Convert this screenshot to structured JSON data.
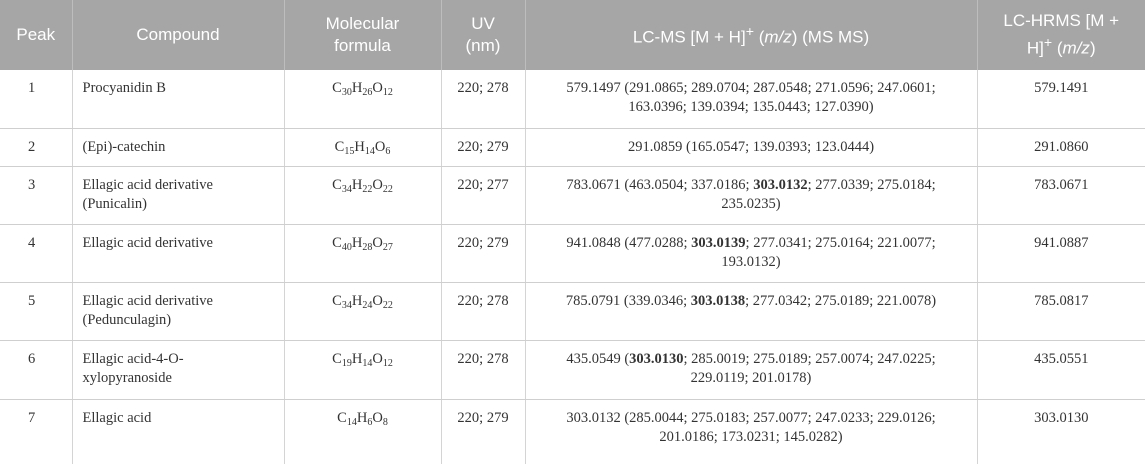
{
  "header": {
    "peak": "Peak",
    "compound": "Compound",
    "formula_l1": "Molecular",
    "formula_l2": "formula",
    "uv_l1": "UV",
    "uv_l2": "(nm)",
    "lcms_a": "LC-MS [M + H]",
    "lcms_sup": "+",
    "lcms_b": " (",
    "lcms_mz": "m/z",
    "lcms_c": ") (MS MS)",
    "hrms_l1": "LC-HRMS [M +",
    "hrms_l2a": "H]",
    "hrms_sup": "+",
    "hrms_l2b": " (",
    "hrms_mz": "m/z",
    "hrms_l2c": ")"
  },
  "rows": [
    {
      "peak": "1",
      "compound": "Procyanidin B",
      "formula": {
        "C": "C",
        "cn": "30",
        "H": "H",
        "hn": "26",
        "O": "O",
        "on": "12"
      },
      "uv": "220; 278",
      "lcms": {
        "a": "579.1497 (291.0865; 289.0704; 287.0548; 271.0596; 247.0601;",
        "b": "163.0396; 139.0394; 135.0443; 127.0390)"
      },
      "hrms": "579.1491"
    },
    {
      "peak": "2",
      "compound": "(Epi)-catechin",
      "formula": {
        "C": "C",
        "cn": "15",
        "H": "H",
        "hn": "14",
        "O": "O",
        "on": "6"
      },
      "uv": "220; 279",
      "lcms": {
        "a": "291.0859 (165.0547; 139.0393; 123.0444)"
      },
      "hrms": "291.0860"
    },
    {
      "peak": "3",
      "compound_l1": "Ellagic acid derivative",
      "compound_l2": "(Punicalin)",
      "formula": {
        "C": "C",
        "cn": "34",
        "H": "H",
        "hn": "22",
        "O": "O",
        "on": "22"
      },
      "uv": "220; 277",
      "lcms": {
        "a": "783.0671 (463.0504; 337.0186; ",
        "bold": "303.0132",
        "c": "; 277.0339; 275.0184;",
        "d": "235.0235)"
      },
      "hrms": "783.0671"
    },
    {
      "peak": "4",
      "compound": "Ellagic acid derivative",
      "formula": {
        "C": "C",
        "cn": "40",
        "H": "H",
        "hn": "28",
        "O": "O",
        "on": "27"
      },
      "uv": "220; 279",
      "lcms": {
        "a": "941.0848 (477.0288; ",
        "bold": "303.0139",
        "c": "; 277.0341; 275.0164; 221.0077;",
        "d": "193.0132)"
      },
      "hrms": "941.0887"
    },
    {
      "peak": "5",
      "compound_l1": "Ellagic acid derivative",
      "compound_l2": "(Pedunculagin)",
      "formula": {
        "C": "C",
        "cn": "34",
        "H": "H",
        "hn": "24",
        "O": "O",
        "on": "22"
      },
      "uv": "220; 278",
      "lcms": {
        "a": "785.0791 (339.0346; ",
        "bold": "303.0138",
        "c": "; 277.0342; 275.0189; 221.0078)"
      },
      "hrms": "785.0817"
    },
    {
      "peak": "6",
      "compound_l1": "Ellagic acid-4-O-",
      "compound_l2": "xylopyranoside",
      "formula": {
        "C": "C",
        "cn": "19",
        "H": "H",
        "hn": "14",
        "O": "O",
        "on": "12"
      },
      "uv": "220; 278",
      "lcms": {
        "a": "435.0549 (",
        "bold": "303.0130",
        "c": "; 285.0019; 275.0189; 257.0074; 247.0225;",
        "d": "229.0119; 201.0178)"
      },
      "hrms": "435.0551"
    },
    {
      "peak": "7",
      "compound": "Ellagic acid",
      "formula": {
        "C": "C",
        "cn": "14",
        "H": "H",
        "hn": "6",
        "O": "O",
        "on": "8"
      },
      "uv": "220; 279",
      "lcms": {
        "a": "303.0132 (285.0044; 275.0183; 257.0077; 247.0233; 229.0126;",
        "b": "201.0186; 173.0231; 145.0282)"
      },
      "hrms": "303.0130"
    }
  ]
}
